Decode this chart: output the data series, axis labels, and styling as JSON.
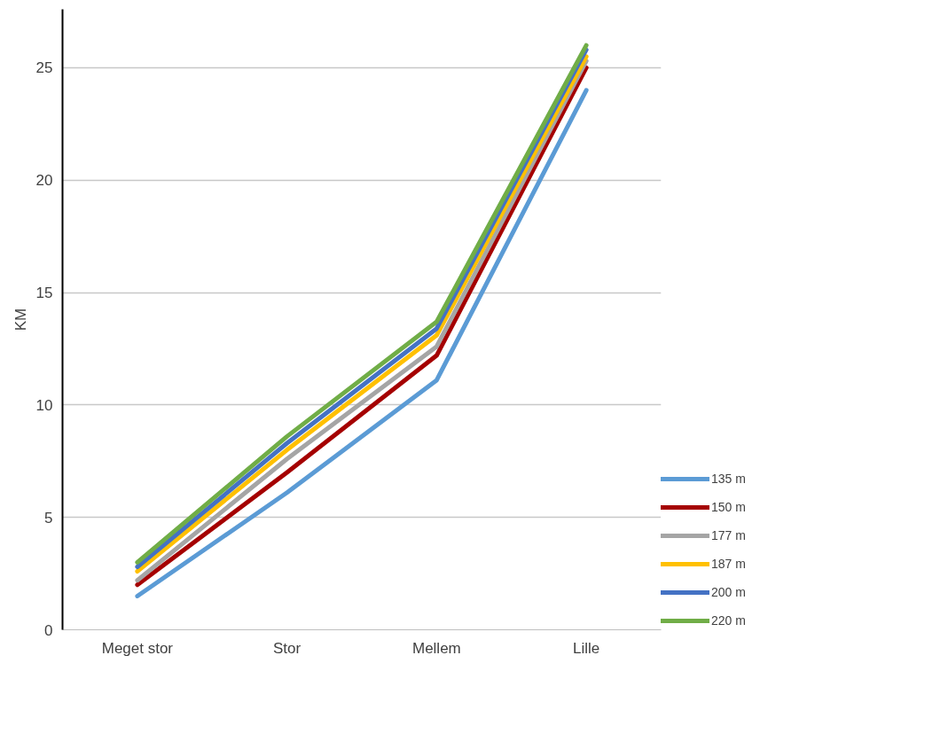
{
  "chart_data": {
    "type": "line",
    "ylabel": "KM",
    "categories": [
      "Meget stor",
      "Stor",
      "Mellem",
      "Lille"
    ],
    "series": [
      {
        "name": "135 m",
        "color": "#5b9bd5",
        "values": [
          1.5,
          6.1,
          11.1,
          24
        ]
      },
      {
        "name": "150 m",
        "color": "#a50000",
        "values": [
          2.0,
          7.0,
          12.2,
          25
        ]
      },
      {
        "name": "177 m",
        "color": "#a5a5a5",
        "values": [
          2.2,
          7.6,
          12.6,
          25.3
        ]
      },
      {
        "name": "187 m",
        "color": "#ffc000",
        "values": [
          2.6,
          8.0,
          13.1,
          25.5
        ]
      },
      {
        "name": "200 m",
        "color": "#4472c4",
        "values": [
          2.8,
          8.3,
          13.4,
          25.8
        ]
      },
      {
        "name": "220 m",
        "color": "#70ad47",
        "values": [
          3.0,
          8.6,
          13.7,
          26
        ]
      }
    ],
    "ylim": [
      0,
      27.6
    ],
    "yticks": [
      0,
      5,
      10,
      15,
      20,
      25
    ],
    "grid": "y",
    "legend": "right",
    "marker": "none",
    "line_style": "solid"
  }
}
